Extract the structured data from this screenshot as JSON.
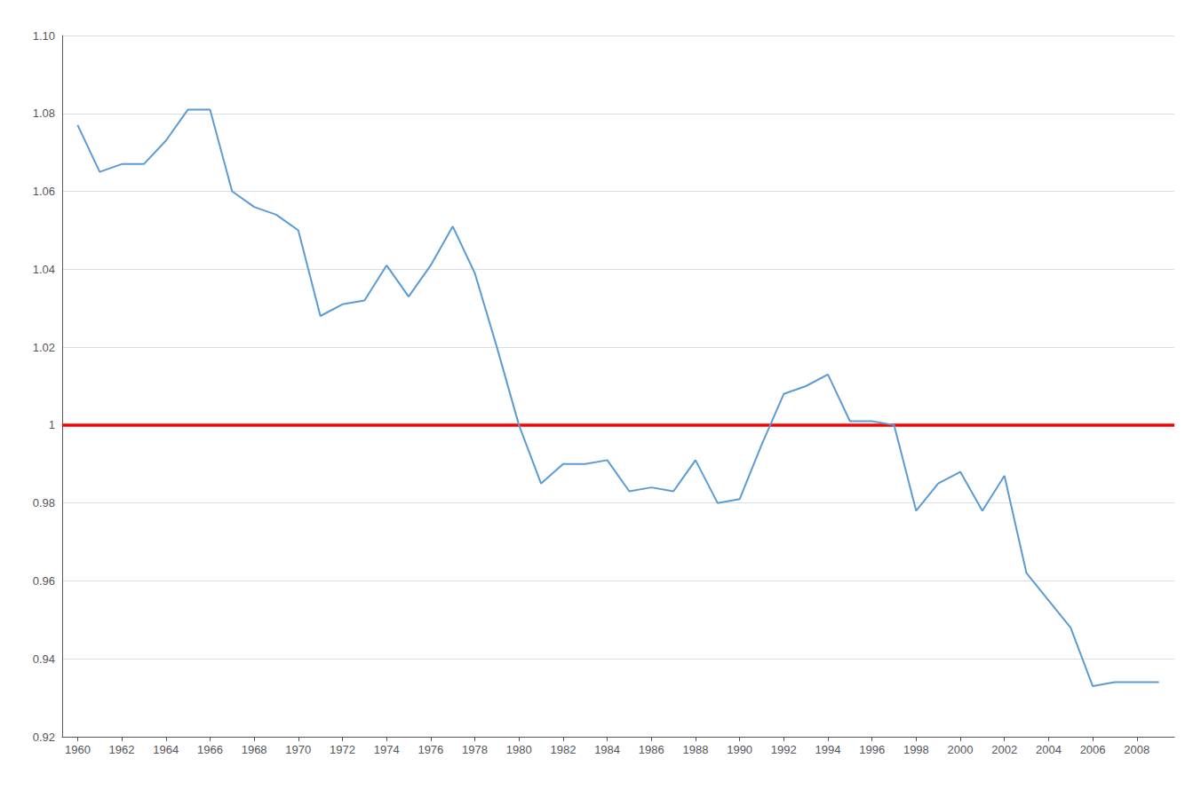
{
  "chart_data": {
    "type": "line",
    "x": [
      1960,
      1961,
      1962,
      1963,
      1964,
      1965,
      1966,
      1967,
      1968,
      1969,
      1970,
      1971,
      1972,
      1973,
      1974,
      1975,
      1976,
      1977,
      1978,
      1979,
      1980,
      1981,
      1982,
      1983,
      1984,
      1985,
      1986,
      1987,
      1988,
      1989,
      1990,
      1991,
      1992,
      1993,
      1994,
      1995,
      1996,
      1997,
      1998,
      1999,
      2000,
      2001,
      2002,
      2003,
      2004,
      2005,
      2006,
      2007,
      2008,
      2009
    ],
    "values": [
      1.077,
      1.065,
      1.067,
      1.067,
      1.073,
      1.081,
      1.081,
      1.06,
      1.056,
      1.054,
      1.05,
      1.028,
      1.031,
      1.032,
      1.041,
      1.033,
      1.041,
      1.051,
      1.039,
      1.02,
      1.0,
      0.985,
      0.99,
      0.99,
      0.991,
      0.983,
      0.984,
      0.983,
      0.991,
      0.98,
      0.981,
      0.995,
      1.008,
      1.01,
      1.013,
      1.001,
      1.001,
      1.0,
      0.978,
      0.985,
      0.988,
      0.978,
      0.987,
      0.962,
      0.955,
      0.948,
      0.933,
      0.934,
      0.934,
      0.934
    ],
    "color": "#5B9BD5",
    "reference_line": {
      "y": 1.0,
      "color": "#FF0000"
    },
    "xlim": [
      1959.3,
      2009.7
    ],
    "xticks": [
      1960,
      1962,
      1964,
      1966,
      1968,
      1970,
      1972,
      1974,
      1976,
      1978,
      1980,
      1982,
      1984,
      1986,
      1988,
      1990,
      1992,
      1994,
      1996,
      1998,
      2000,
      2002,
      2004,
      2006,
      2008
    ],
    "ylim": [
      0.92,
      1.1
    ],
    "yticks": [
      0.92,
      0.94,
      0.96,
      0.98,
      1,
      1.02,
      1.04,
      1.06,
      1.08,
      {
        "value": 1.1,
        "label": "1.10"
      }
    ],
    "grid": "y"
  }
}
